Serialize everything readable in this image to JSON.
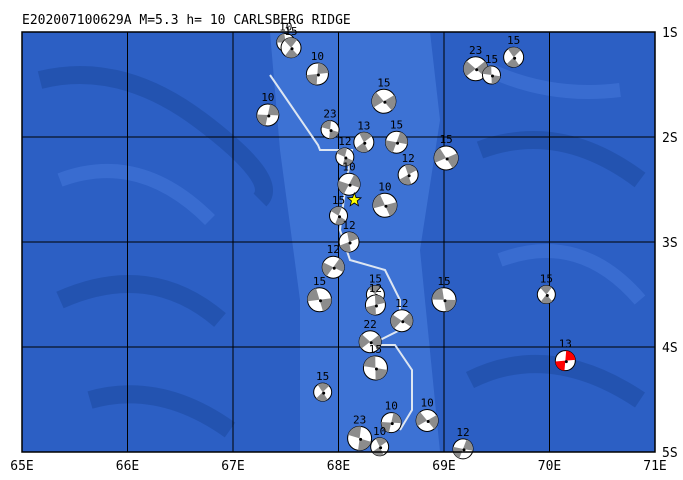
{
  "title": "E202007100629A  M=5.3  h= 10  CARLSBERG RIDGE",
  "map": {
    "xlim": [
      65,
      71
    ],
    "ylim": [
      -5,
      -1
    ],
    "xticks": [
      {
        "value": 65,
        "label": "65E"
      },
      {
        "value": 66,
        "label": "66E"
      },
      {
        "value": 67,
        "label": "67E"
      },
      {
        "value": 68,
        "label": "68E"
      },
      {
        "value": 69,
        "label": "69E"
      },
      {
        "value": 70,
        "label": "70E"
      },
      {
        "value": 71,
        "label": "71E"
      }
    ],
    "yticks": [
      {
        "value": -1,
        "label": "1S"
      },
      {
        "value": -2,
        "label": "2S"
      },
      {
        "value": -3,
        "label": "3S"
      },
      {
        "value": -4,
        "label": "4S"
      },
      {
        "value": -5,
        "label": "5S"
      }
    ],
    "grid": true,
    "epicenter": {
      "lon": 68.15,
      "lat": -2.6,
      "color": "#ffff00"
    },
    "events": [
      {
        "lon": 67.5,
        "lat": -1.1,
        "depth": 10
      },
      {
        "lon": 67.55,
        "lat": -1.15,
        "depth": 15
      },
      {
        "lon": 67.8,
        "lat": -1.4,
        "depth": 10
      },
      {
        "lon": 69.3,
        "lat": -1.35,
        "depth": 23
      },
      {
        "lon": 69.45,
        "lat": -1.41,
        "depth": 15
      },
      {
        "lon": 69.66,
        "lat": -1.24,
        "depth": 15
      },
      {
        "lon": 67.33,
        "lat": -1.79,
        "depth": 10
      },
      {
        "lon": 68.43,
        "lat": -1.66,
        "depth": 15
      },
      {
        "lon": 67.92,
        "lat": -1.93,
        "depth": 23
      },
      {
        "lon": 68.24,
        "lat": -2.05,
        "depth": 13
      },
      {
        "lon": 68.55,
        "lat": -2.05,
        "depth": 15
      },
      {
        "lon": 69.02,
        "lat": -2.2,
        "depth": 15
      },
      {
        "lon": 68.06,
        "lat": -2.19,
        "depth": 12
      },
      {
        "lon": 68.66,
        "lat": -2.36,
        "depth": 12
      },
      {
        "lon": 68.1,
        "lat": -2.45,
        "depth": 10
      },
      {
        "lon": 68.44,
        "lat": -2.65,
        "depth": 10
      },
      {
        "lon": 68.0,
        "lat": -2.75,
        "depth": 15
      },
      {
        "lon": 68.1,
        "lat": -3.0,
        "depth": 12
      },
      {
        "lon": 67.95,
        "lat": -3.24,
        "depth": 12
      },
      {
        "lon": 67.82,
        "lat": -3.55,
        "depth": 15
      },
      {
        "lon": 68.35,
        "lat": -3.5,
        "depth": 15
      },
      {
        "lon": 68.35,
        "lat": -3.6,
        "depth": 12
      },
      {
        "lon": 68.6,
        "lat": -3.75,
        "depth": 12
      },
      {
        "lon": 69.0,
        "lat": -3.55,
        "depth": 15
      },
      {
        "lon": 69.97,
        "lat": -3.5,
        "depth": 15
      },
      {
        "lon": 70.15,
        "lat": -4.13,
        "depth": 13,
        "color": "#ff0000"
      },
      {
        "lon": 68.3,
        "lat": -3.95,
        "depth": 22
      },
      {
        "lon": 68.35,
        "lat": -4.2,
        "depth": 15
      },
      {
        "lon": 67.85,
        "lat": -4.43,
        "depth": 15
      },
      {
        "lon": 68.5,
        "lat": -4.72,
        "depth": 10
      },
      {
        "lon": 68.84,
        "lat": -4.7,
        "depth": 10
      },
      {
        "lon": 68.2,
        "lat": -4.87,
        "depth": 23
      },
      {
        "lon": 68.39,
        "lat": -4.95,
        "depth": 10
      },
      {
        "lon": 69.18,
        "lat": -4.97,
        "depth": 12
      }
    ]
  }
}
